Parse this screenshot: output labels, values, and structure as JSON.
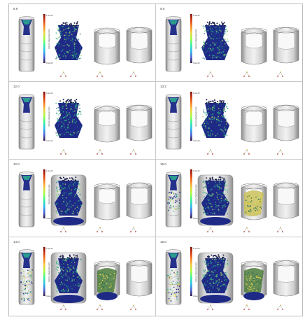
{
  "figure": {
    "panels": [
      {
        "label": "8.9",
        "stage": 0
      },
      {
        "label": "9.0",
        "stage": 0
      },
      {
        "label": "12.0",
        "stage": 0
      },
      {
        "label": "13.2",
        "stage": 0
      },
      {
        "label": "12.0",
        "stage": 1
      },
      {
        "label": "15.0",
        "stage": 2
      },
      {
        "label": "14.0",
        "stage": 3
      },
      {
        "label": "15.0",
        "stage": 3
      }
    ],
    "colorbar": {
      "title": "Velocity Magnitude (m/s)",
      "max_label": "1.0e+00",
      "min_label": "0.0e+00",
      "colors": [
        "#7a0403",
        "#d23105",
        "#fb8022",
        "#edd03a",
        "#a2fc3c",
        "#31f299",
        "#28bceb",
        "#4662d7",
        "#30123b"
      ]
    },
    "particle_color": "#1f2a86",
    "highlight_colors": [
      "#2bb07f",
      "#e8d34a",
      "#8fd36b"
    ]
  }
}
